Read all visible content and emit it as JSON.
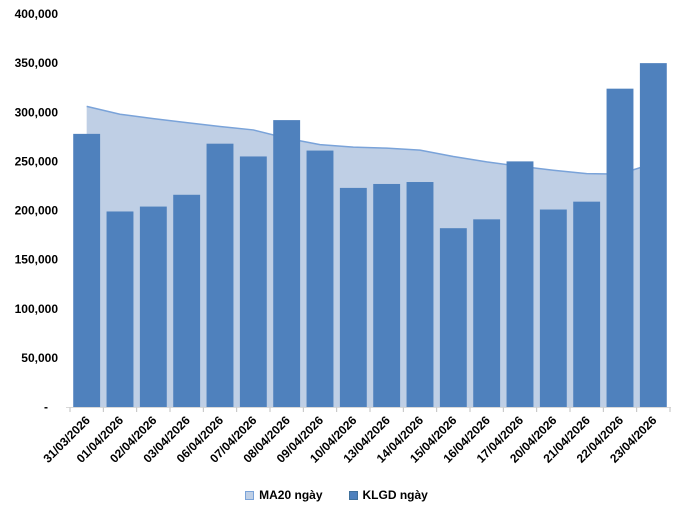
{
  "chart_data": {
    "type": "bar",
    "title": "",
    "xlabel": "",
    "ylabel": "",
    "grid": false,
    "legend_position": "bottom",
    "ylim": [
      0,
      400000
    ],
    "ytick_step": 50000,
    "ytick_labels": [
      "400,000",
      "350,000",
      "300,000",
      "250,000",
      "200,000",
      "150,000",
      "100,000",
      "50,000",
      "-"
    ],
    "categories": [
      "31/03/2026",
      "01/04/2026",
      "02/04/2026",
      "03/04/2026",
      "06/04/2026",
      "07/04/2026",
      "08/04/2026",
      "09/04/2026",
      "10/04/2026",
      "13/04/2026",
      "14/04/2026",
      "15/04/2026",
      "16/04/2026",
      "17/04/2026",
      "20/04/2026",
      "21/04/2026",
      "22/04/2026",
      "23/04/2026"
    ],
    "series": [
      {
        "name": "MA20 ngày",
        "type": "area",
        "values": [
          306000,
          298000,
          293500,
          289500,
          285500,
          282000,
          273500,
          267000,
          264500,
          263500,
          261500,
          255000,
          249500,
          245000,
          241000,
          237500,
          237000,
          248000
        ]
      },
      {
        "name": "KLGD ngày",
        "type": "column",
        "values": [
          278000,
          199000,
          204000,
          216000,
          268000,
          255000,
          292000,
          261000,
          223000,
          227000,
          229000,
          182000,
          191000,
          250000,
          201000,
          209000,
          324000,
          350000
        ]
      }
    ],
    "colors": {
      "column": "#4F81BD",
      "column_border": "#41719C",
      "area_fill": "#BFCFE5",
      "area_line": "#7AA3D9",
      "axis_line": "#D9D9D9",
      "tick": "#BFBFBF",
      "label_text": "#000000"
    }
  }
}
